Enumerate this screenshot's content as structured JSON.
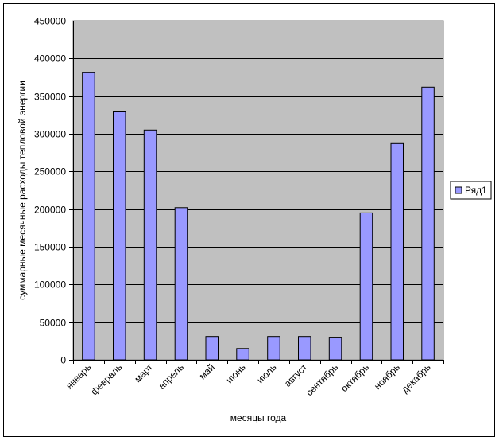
{
  "chart_data": {
    "type": "bar",
    "title": "",
    "xlabel": "месяцы года",
    "ylabel": "суммарные месячные расходы тепловой энергии",
    "ylim": [
      0,
      450000
    ],
    "yticks": [
      0,
      50000,
      100000,
      150000,
      200000,
      250000,
      300000,
      350000,
      400000,
      450000
    ],
    "grid": true,
    "legend_position": "right",
    "categories": [
      "январь",
      "февраль",
      "март",
      "апрель",
      "май",
      "июнь",
      "июль",
      "август",
      "сентябрь",
      "октябрь",
      "ноябрь",
      "декабрь"
    ],
    "series": [
      {
        "name": "Ряд1",
        "color": "#9999ff",
        "values": [
          381000,
          329000,
          305000,
          202000,
          31000,
          15000,
          31000,
          31000,
          30000,
          195000,
          287000,
          362000
        ]
      }
    ],
    "plot_background": "#c0c0c0"
  }
}
